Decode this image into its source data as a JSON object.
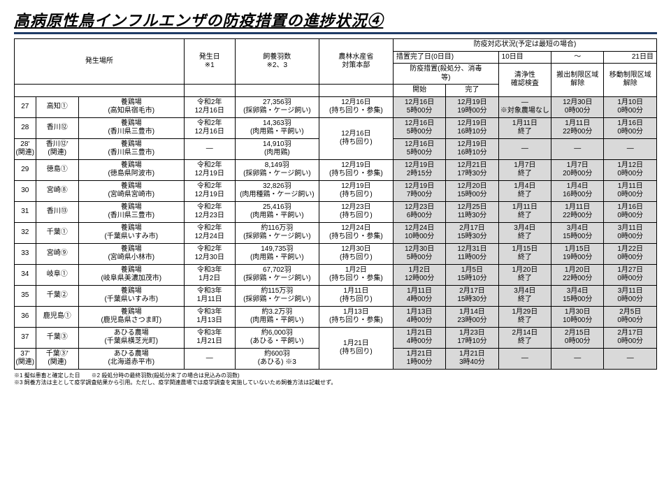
{
  "title": "高病原性鳥インフルエンザの防疫措置の進捗状況④",
  "headers": {
    "place": "発生場所",
    "date": "発生日\n※1",
    "birds": "飼養羽数\n※2、3",
    "hq": "農林水産省\n対策本部",
    "status_top": "防疫対応状況(予定は最短の場合)",
    "day0": "措置完了日(0日目)",
    "day10": "10日目",
    "tilde": "～",
    "day21": "21日目",
    "measure": "防疫措置(殺処分、消毒\n等)",
    "clean": "清浄性\n確認検査",
    "ship": "搬出制限区域\n解除",
    "move": "移動制限区域\n解除",
    "start": "開始",
    "end": "完了"
  },
  "rows": [
    {
      "no": "27",
      "pref": "高知①",
      "loc": "養鶏場\n(高知県宿毛市)",
      "date": "令和2年\n12月16日",
      "birds": "27,356羽\n(採卵鶏・ケージ飼い)",
      "hq": "12月16日\n(持ち回り・参集)",
      "start": "12月16日\n5時00分",
      "end": "12月19日\n19時00分",
      "clean": "―\n※対象農場なし",
      "ship": "12月30日\n0時00分",
      "move": "1月10日\n0時00分",
      "hqspan": 1
    },
    {
      "no": "28",
      "pref": "香川⑫",
      "loc": "養鶏場\n(香川県三豊市)",
      "date": "令和2年\n12月16日",
      "birds": "14,363羽\n(肉用鶏・平飼い)",
      "hq": "12月16日\n(持ち回り)",
      "start": "12月16日\n5時00分",
      "end": "12月19日\n16時10分",
      "clean": "1月11日\n終了",
      "ship": "1月11日\n22時00分",
      "move": "1月16日\n0時00分",
      "hqspan": 2
    },
    {
      "no": "28'\n(関連)",
      "pref": "香川⑫'\n(関連)",
      "loc": "養鶏場\n(香川県三豊市)",
      "date": "―",
      "birds": "14,910羽\n(肉用鶏)",
      "hq": "",
      "start": "12月16日\n5時00分",
      "end": "12月19日\n16時10分",
      "clean": "―",
      "ship": "―",
      "move": "―",
      "hqspan": 0
    },
    {
      "no": "29",
      "pref": "徳島①",
      "loc": "養鶏場\n(徳島県阿波市)",
      "date": "令和2年\n12月19日",
      "birds": "8,149羽\n(採卵鶏・ケージ飼い)",
      "hq": "12月19日\n(持ち回り・参集)",
      "start": "12月19日\n2時15分",
      "end": "12月21日\n17時30分",
      "clean": "1月7日\n終了",
      "ship": "1月7日\n20時00分",
      "move": "1月12日\n0時00分",
      "hqspan": 1
    },
    {
      "no": "30",
      "pref": "宮崎⑧",
      "loc": "養鶏場\n(宮崎県宮崎市)",
      "date": "令和2年\n12月19日",
      "birds": "32,826羽\n(肉用種鶏・ケージ飼い)",
      "hq": "12月19日\n(持ち回り)",
      "start": "12月19日\n7時00分",
      "end": "12月20日\n15時00分",
      "clean": "1月4日\n終了",
      "ship": "1月4日\n16時00分",
      "move": "1月11日\n0時00分",
      "hqspan": 1
    },
    {
      "no": "31",
      "pref": "香川⑬",
      "loc": "養鶏場\n(香川県三豊市)",
      "date": "令和2年\n12月23日",
      "birds": "25,416羽\n(肉用鶏・平飼い)",
      "hq": "12月23日\n(持ち回り)",
      "start": "12月23日\n6時00分",
      "end": "12月25日\n11時30分",
      "clean": "1月11日\n終了",
      "ship": "1月11日\n22時00分",
      "move": "1月16日\n0時00分",
      "hqspan": 1
    },
    {
      "no": "32",
      "pref": "千葉①",
      "loc": "養鶏場\n(千葉県いすみ市)",
      "date": "令和2年\n12月24日",
      "birds": "約116万羽\n(採卵鶏・ケージ飼い)",
      "hq": "12月24日\n(持ち回り・参集)",
      "start": "12月24日\n10時00分",
      "end": "2月17日\n15時30分",
      "clean": "3月4日\n終了",
      "ship": "3月4日\n15時00分",
      "move": "3月11日\n0時00分",
      "hqspan": 1
    },
    {
      "no": "33",
      "pref": "宮崎⑨",
      "loc": "養鶏場\n(宮崎県小林市)",
      "date": "令和2年\n12月30日",
      "birds": "149,735羽\n(肉用鶏・平飼い)",
      "hq": "12月30日\n(持ち回り)",
      "start": "12月30日\n5時00分",
      "end": "12月31日\n11時00分",
      "clean": "1月15日\n終了",
      "ship": "1月15日\n19時00分",
      "move": "1月22日\n0時00分",
      "hqspan": 1
    },
    {
      "no": "34",
      "pref": "岐阜①",
      "loc": "養鶏場\n(岐阜県美濃加茂市)",
      "date": "令和3年\n1月2日",
      "birds": "67,702羽\n(採卵鶏・ケージ飼い)",
      "hq": "1月2日\n(持ち回り・参集)",
      "start": "1月2日\n12時00分",
      "end": "1月5日\n15時10分",
      "clean": "1月20日\n終了",
      "ship": "1月20日\n22時00分",
      "move": "1月27日\n0時00分",
      "hqspan": 1
    },
    {
      "no": "35",
      "pref": "千葉②",
      "loc": "養鶏場\n(千葉県いすみ市)",
      "date": "令和3年\n1月11日",
      "birds": "約115万羽\n(採卵鶏・ケージ飼い)",
      "hq": "1月11日\n(持ち回り)",
      "start": "1月11日\n4時00分",
      "end": "2月17日\n15時30分",
      "clean": "3月4日\n終了",
      "ship": "3月4日\n15時00分",
      "move": "3月11日\n0時00分",
      "hqspan": 1
    },
    {
      "no": "36",
      "pref": "鹿児島①",
      "loc": "養鶏場\n(鹿児島県さつま町)",
      "date": "令和3年\n1月13日",
      "birds": "約3.2万羽\n(肉用鶏・平飼い)",
      "hq": "1月13日\n(持ち回り・参集)",
      "start": "1月13日\n4時00分",
      "end": "1月14日\n23時00分",
      "clean": "1月29日\n終了",
      "ship": "1月30日\n10時00分",
      "move": "2月5日\n0時00分",
      "hqspan": 1
    },
    {
      "no": "37",
      "pref": "千葉③",
      "loc": "あひる農場\n(千葉県横芝光町)",
      "date": "令和3年\n1月21日",
      "birds": "約6,000羽\n(あひる・平飼い)",
      "hq": "1月21日\n(持ち回り)",
      "start": "1月21日\n4時00分",
      "end": "1月23日\n17時10分",
      "clean": "2月14日\n終了",
      "ship": "2月15日\n0時00分",
      "move": "2月17日\n0時00分",
      "hqspan": 2
    },
    {
      "no": "37'\n(関連)",
      "pref": "千葉③'\n(関連)",
      "loc": "あひる農場\n(北海道赤平市)",
      "date": "―",
      "birds": "約600羽\n(あひる) ※3",
      "hq": "",
      "start": "1月21日\n1時00分",
      "end": "1月21日\n3時40分",
      "clean": "―",
      "ship": "―",
      "move": "―",
      "hqspan": 0
    }
  ],
  "footnotes": [
    "※1 擬似患畜と確定した日　　※2 殺処分時の最終羽数(殺処分未了の場合は見込みの羽数)",
    "※3 飼養方法は主として疫学調査結果から引用。ただし、疫学関連農場では疫学調査を実施していないため飼養方法は記載せず。"
  ],
  "colors": {
    "title_underline": "#1f3b66",
    "shade": "#d9d9d9",
    "border": "#000000"
  }
}
